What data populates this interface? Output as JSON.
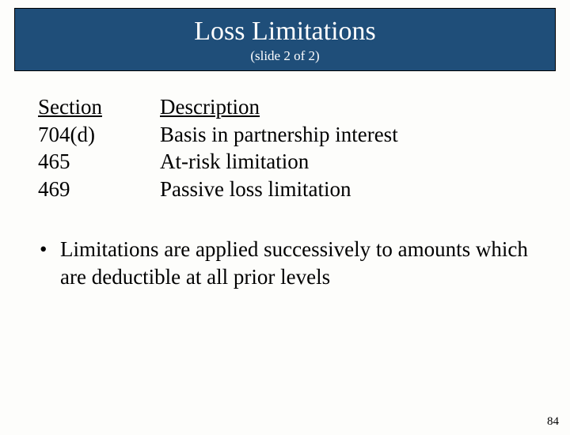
{
  "header": {
    "title": "Loss Limitations",
    "subtitle": "(slide 2 of 2)",
    "background_color": "#1f4e79",
    "title_fontsize": 34,
    "subtitle_fontsize": 17,
    "title_color": "#ffffff"
  },
  "table": {
    "section_header": "Section",
    "description_header": "Description",
    "rows": [
      {
        "section": "704(d)",
        "description": " Basis in partnership interest"
      },
      {
        "section": "465",
        "description": "At-risk limitation"
      },
      {
        "section": "469",
        "description": "Passive loss limitation"
      }
    ]
  },
  "bullet": {
    "text": "Limitations are applied successively to amounts which are deductible at all prior levels"
  },
  "page_number": "84",
  "body": {
    "font_family": "Times New Roman",
    "content_fontsize": 27,
    "text_color": "#000000",
    "background_color": "#fdfdfb"
  }
}
